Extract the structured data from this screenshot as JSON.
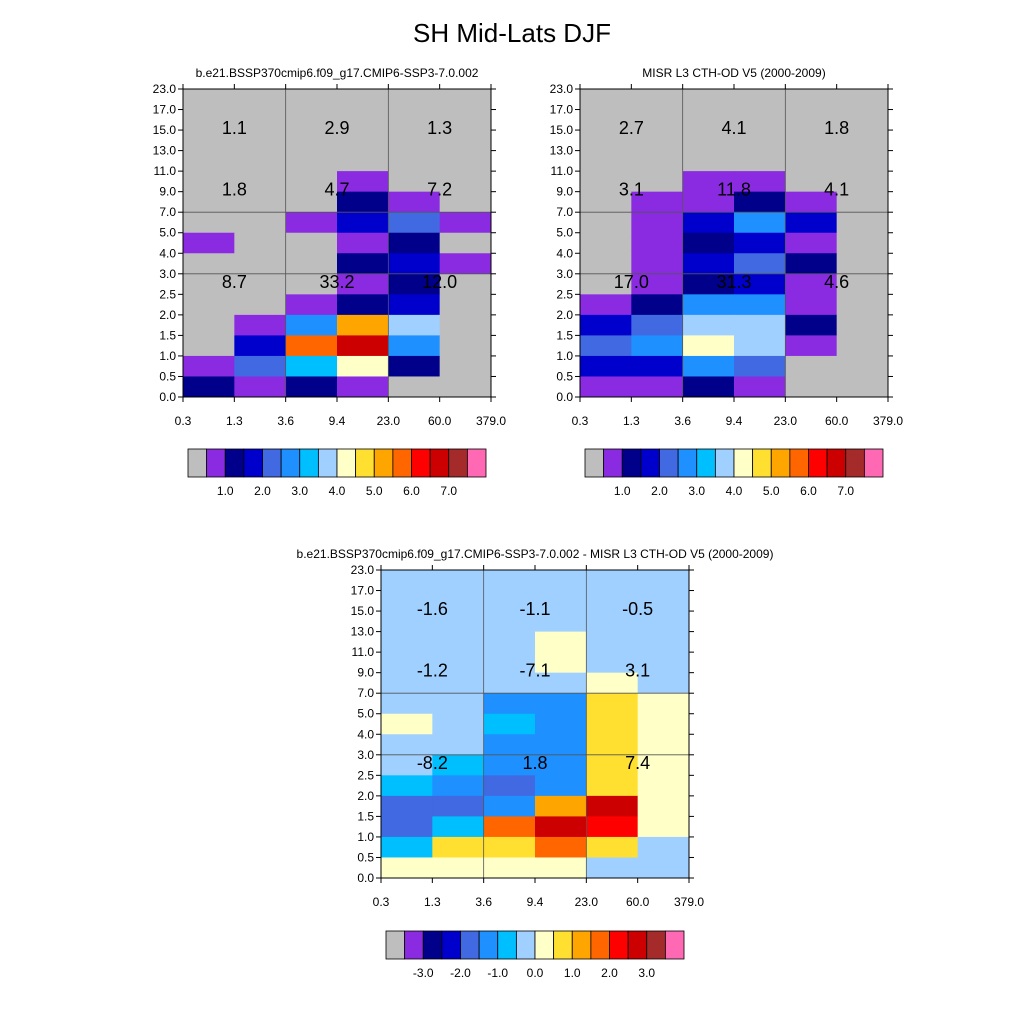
{
  "figure": {
    "title": "SH Mid-Lats DJF"
  },
  "palette": {
    "base": [
      "#bebebe",
      "#8a2be2",
      "#00008b",
      "#0000cd",
      "#4169e1",
      "#1e90ff",
      "#00bfff",
      "#a0d0ff",
      "#ffffc8",
      "#ffe030",
      "#ffa500",
      "#ff6600",
      "#ff0000",
      "#cc0000",
      "#a52a2a",
      "#ff69b4"
    ]
  },
  "chart_data": [
    {
      "type": "heatmap",
      "title": "b.e21.BSSP370cmip6.f09_g17.CMIP6-SSP3-7.0.002",
      "xlabel": "",
      "ylabel": "",
      "x_ticks": [
        "0.3",
        "1.3",
        "3.6",
        "9.4",
        "23.0",
        "60.0",
        "379.0"
      ],
      "y_ticks": [
        "0.0",
        "0.5",
        "1.0",
        "1.5",
        "2.0",
        "2.5",
        "3.0",
        "4.0",
        "5.0",
        "7.0",
        "9.0",
        "11.0",
        "13.0",
        "15.0",
        "17.0",
        "23.0"
      ],
      "grid_rows": [
        [
          0,
          0,
          0,
          0,
          0,
          0
        ],
        [
          0,
          0,
          0,
          0,
          0,
          0
        ],
        [
          0,
          0,
          0,
          0,
          0,
          0
        ],
        [
          0,
          0,
          0,
          1,
          0,
          0
        ],
        [
          0,
          0,
          0,
          2,
          1,
          0
        ],
        [
          0,
          0,
          1,
          3,
          4,
          1
        ],
        [
          1,
          0,
          0,
          1,
          2,
          0
        ],
        [
          0,
          0,
          0,
          2,
          3,
          1
        ],
        [
          0,
          0,
          0,
          1,
          2,
          0
        ],
        [
          0,
          0,
          1,
          2,
          3,
          0
        ],
        [
          0,
          1,
          5,
          10,
          7,
          0
        ],
        [
          0,
          3,
          11,
          13,
          5,
          0
        ],
        [
          1,
          4,
          6,
          8,
          2,
          0
        ],
        [
          2,
          1,
          2,
          1,
          0,
          0
        ]
      ],
      "annotations": [
        {
          "label": "1.1",
          "col": 0.5,
          "row": 1.5
        },
        {
          "label": "2.9",
          "col": 2.0,
          "row": 1.5
        },
        {
          "label": "1.3",
          "col": 3.5,
          "row": 1.5
        },
        {
          "label": "1.8",
          "col": 0.5,
          "row": 4.5
        },
        {
          "label": "4.7",
          "col": 2.0,
          "row": 4.5
        },
        {
          "label": "7.2",
          "col": 3.5,
          "row": 4.5
        },
        {
          "label": "8.7",
          "col": 0.5,
          "row": 9.0
        },
        {
          "label": "33.2",
          "col": 2.0,
          "row": 9.0
        },
        {
          "label": "12.0",
          "col": 3.5,
          "row": 9.0
        }
      ],
      "colorbar_labels": [
        "1.0",
        "2.0",
        "3.0",
        "4.0",
        "5.0",
        "6.0",
        "7.0"
      ]
    },
    {
      "type": "heatmap",
      "title": "MISR L3 CTH-OD V5 (2000-2009)",
      "xlabel": "",
      "ylabel": "",
      "x_ticks": [
        "0.3",
        "1.3",
        "3.6",
        "9.4",
        "23.0",
        "60.0",
        "379.0"
      ],
      "y_ticks": [
        "0.0",
        "0.5",
        "1.0",
        "1.5",
        "2.0",
        "2.5",
        "3.0",
        "4.0",
        "5.0",
        "7.0",
        "9.0",
        "11.0",
        "13.0",
        "15.0",
        "17.0",
        "23.0"
      ],
      "grid_rows": [
        [
          0,
          0,
          0,
          0,
          0,
          0
        ],
        [
          0,
          0,
          0,
          0,
          0,
          0
        ],
        [
          0,
          0,
          0,
          0,
          0,
          0
        ],
        [
          0,
          0,
          1,
          1,
          0,
          0
        ],
        [
          0,
          1,
          1,
          2,
          1,
          0
        ],
        [
          0,
          1,
          3,
          5,
          3,
          0
        ],
        [
          0,
          1,
          2,
          3,
          1,
          0
        ],
        [
          0,
          1,
          3,
          4,
          2,
          0
        ],
        [
          0,
          1,
          2,
          3,
          1,
          0
        ],
        [
          1,
          2,
          5,
          5,
          1,
          0
        ],
        [
          3,
          4,
          7,
          7,
          2,
          0
        ],
        [
          4,
          5,
          8,
          7,
          1,
          0
        ],
        [
          3,
          3,
          5,
          4,
          0,
          0
        ],
        [
          1,
          1,
          2,
          1,
          0,
          0
        ]
      ],
      "annotations": [
        {
          "label": "2.7",
          "col": 0.5,
          "row": 1.5
        },
        {
          "label": "4.1",
          "col": 2.0,
          "row": 1.5
        },
        {
          "label": "1.8",
          "col": 3.5,
          "row": 1.5
        },
        {
          "label": "3.1",
          "col": 0.5,
          "row": 4.5
        },
        {
          "label": "11.8",
          "col": 2.0,
          "row": 4.5
        },
        {
          "label": "4.1",
          "col": 3.5,
          "row": 4.5
        },
        {
          "label": "17.0",
          "col": 0.5,
          "row": 9.0
        },
        {
          "label": "31.3",
          "col": 2.0,
          "row": 9.0
        },
        {
          "label": "4.6",
          "col": 3.5,
          "row": 9.0
        }
      ],
      "colorbar_labels": [
        "1.0",
        "2.0",
        "3.0",
        "4.0",
        "5.0",
        "6.0",
        "7.0"
      ]
    },
    {
      "type": "heatmap",
      "title": "b.e21.BSSP370cmip6.f09_g17.CMIP6-SSP3-7.0.002 - MISR L3 CTH-OD V5 (2000-2009)",
      "xlabel": "",
      "ylabel": "",
      "x_ticks": [
        "0.3",
        "1.3",
        "3.6",
        "9.4",
        "23.0",
        "60.0",
        "379.0"
      ],
      "y_ticks": [
        "0.0",
        "0.5",
        "1.0",
        "1.5",
        "2.0",
        "2.5",
        "3.0",
        "4.0",
        "5.0",
        "7.0",
        "9.0",
        "11.0",
        "13.0",
        "15.0",
        "17.0",
        "23.0"
      ],
      "grid_rows": [
        [
          7,
          7,
          7,
          7,
          7,
          7
        ],
        [
          7,
          7,
          7,
          7,
          7,
          7
        ],
        [
          7,
          7,
          7,
          8,
          7,
          7
        ],
        [
          7,
          7,
          7,
          8,
          7,
          7
        ],
        [
          7,
          7,
          7,
          7,
          8,
          7
        ],
        [
          7,
          7,
          5,
          5,
          9,
          8
        ],
        [
          8,
          7,
          6,
          5,
          9,
          8
        ],
        [
          7,
          7,
          5,
          5,
          9,
          8
        ],
        [
          7,
          6,
          5,
          5,
          9,
          8
        ],
        [
          6,
          5,
          4,
          5,
          9,
          8
        ],
        [
          4,
          4,
          5,
          10,
          13,
          8
        ],
        [
          4,
          6,
          11,
          13,
          12,
          8
        ],
        [
          6,
          9,
          9,
          11,
          9,
          7
        ],
        [
          8,
          8,
          8,
          8,
          7,
          7
        ]
      ],
      "annotations": [
        {
          "label": "-1.6",
          "col": 0.5,
          "row": 1.5
        },
        {
          "label": "-1.1",
          "col": 2.0,
          "row": 1.5
        },
        {
          "label": "-0.5",
          "col": 3.5,
          "row": 1.5
        },
        {
          "label": "-1.2",
          "col": 0.5,
          "row": 4.5
        },
        {
          "label": "-7.1",
          "col": 2.0,
          "row": 4.5
        },
        {
          "label": "3.1",
          "col": 3.5,
          "row": 4.5
        },
        {
          "label": "-8.2",
          "col": 0.5,
          "row": 9.0
        },
        {
          "label": "1.8",
          "col": 2.0,
          "row": 9.0
        },
        {
          "label": "7.4",
          "col": 3.5,
          "row": 9.0
        }
      ],
      "colorbar_labels": [
        "-3.0",
        "-2.0",
        "-1.0",
        "0.0",
        "1.0",
        "2.0",
        "3.0"
      ]
    }
  ]
}
